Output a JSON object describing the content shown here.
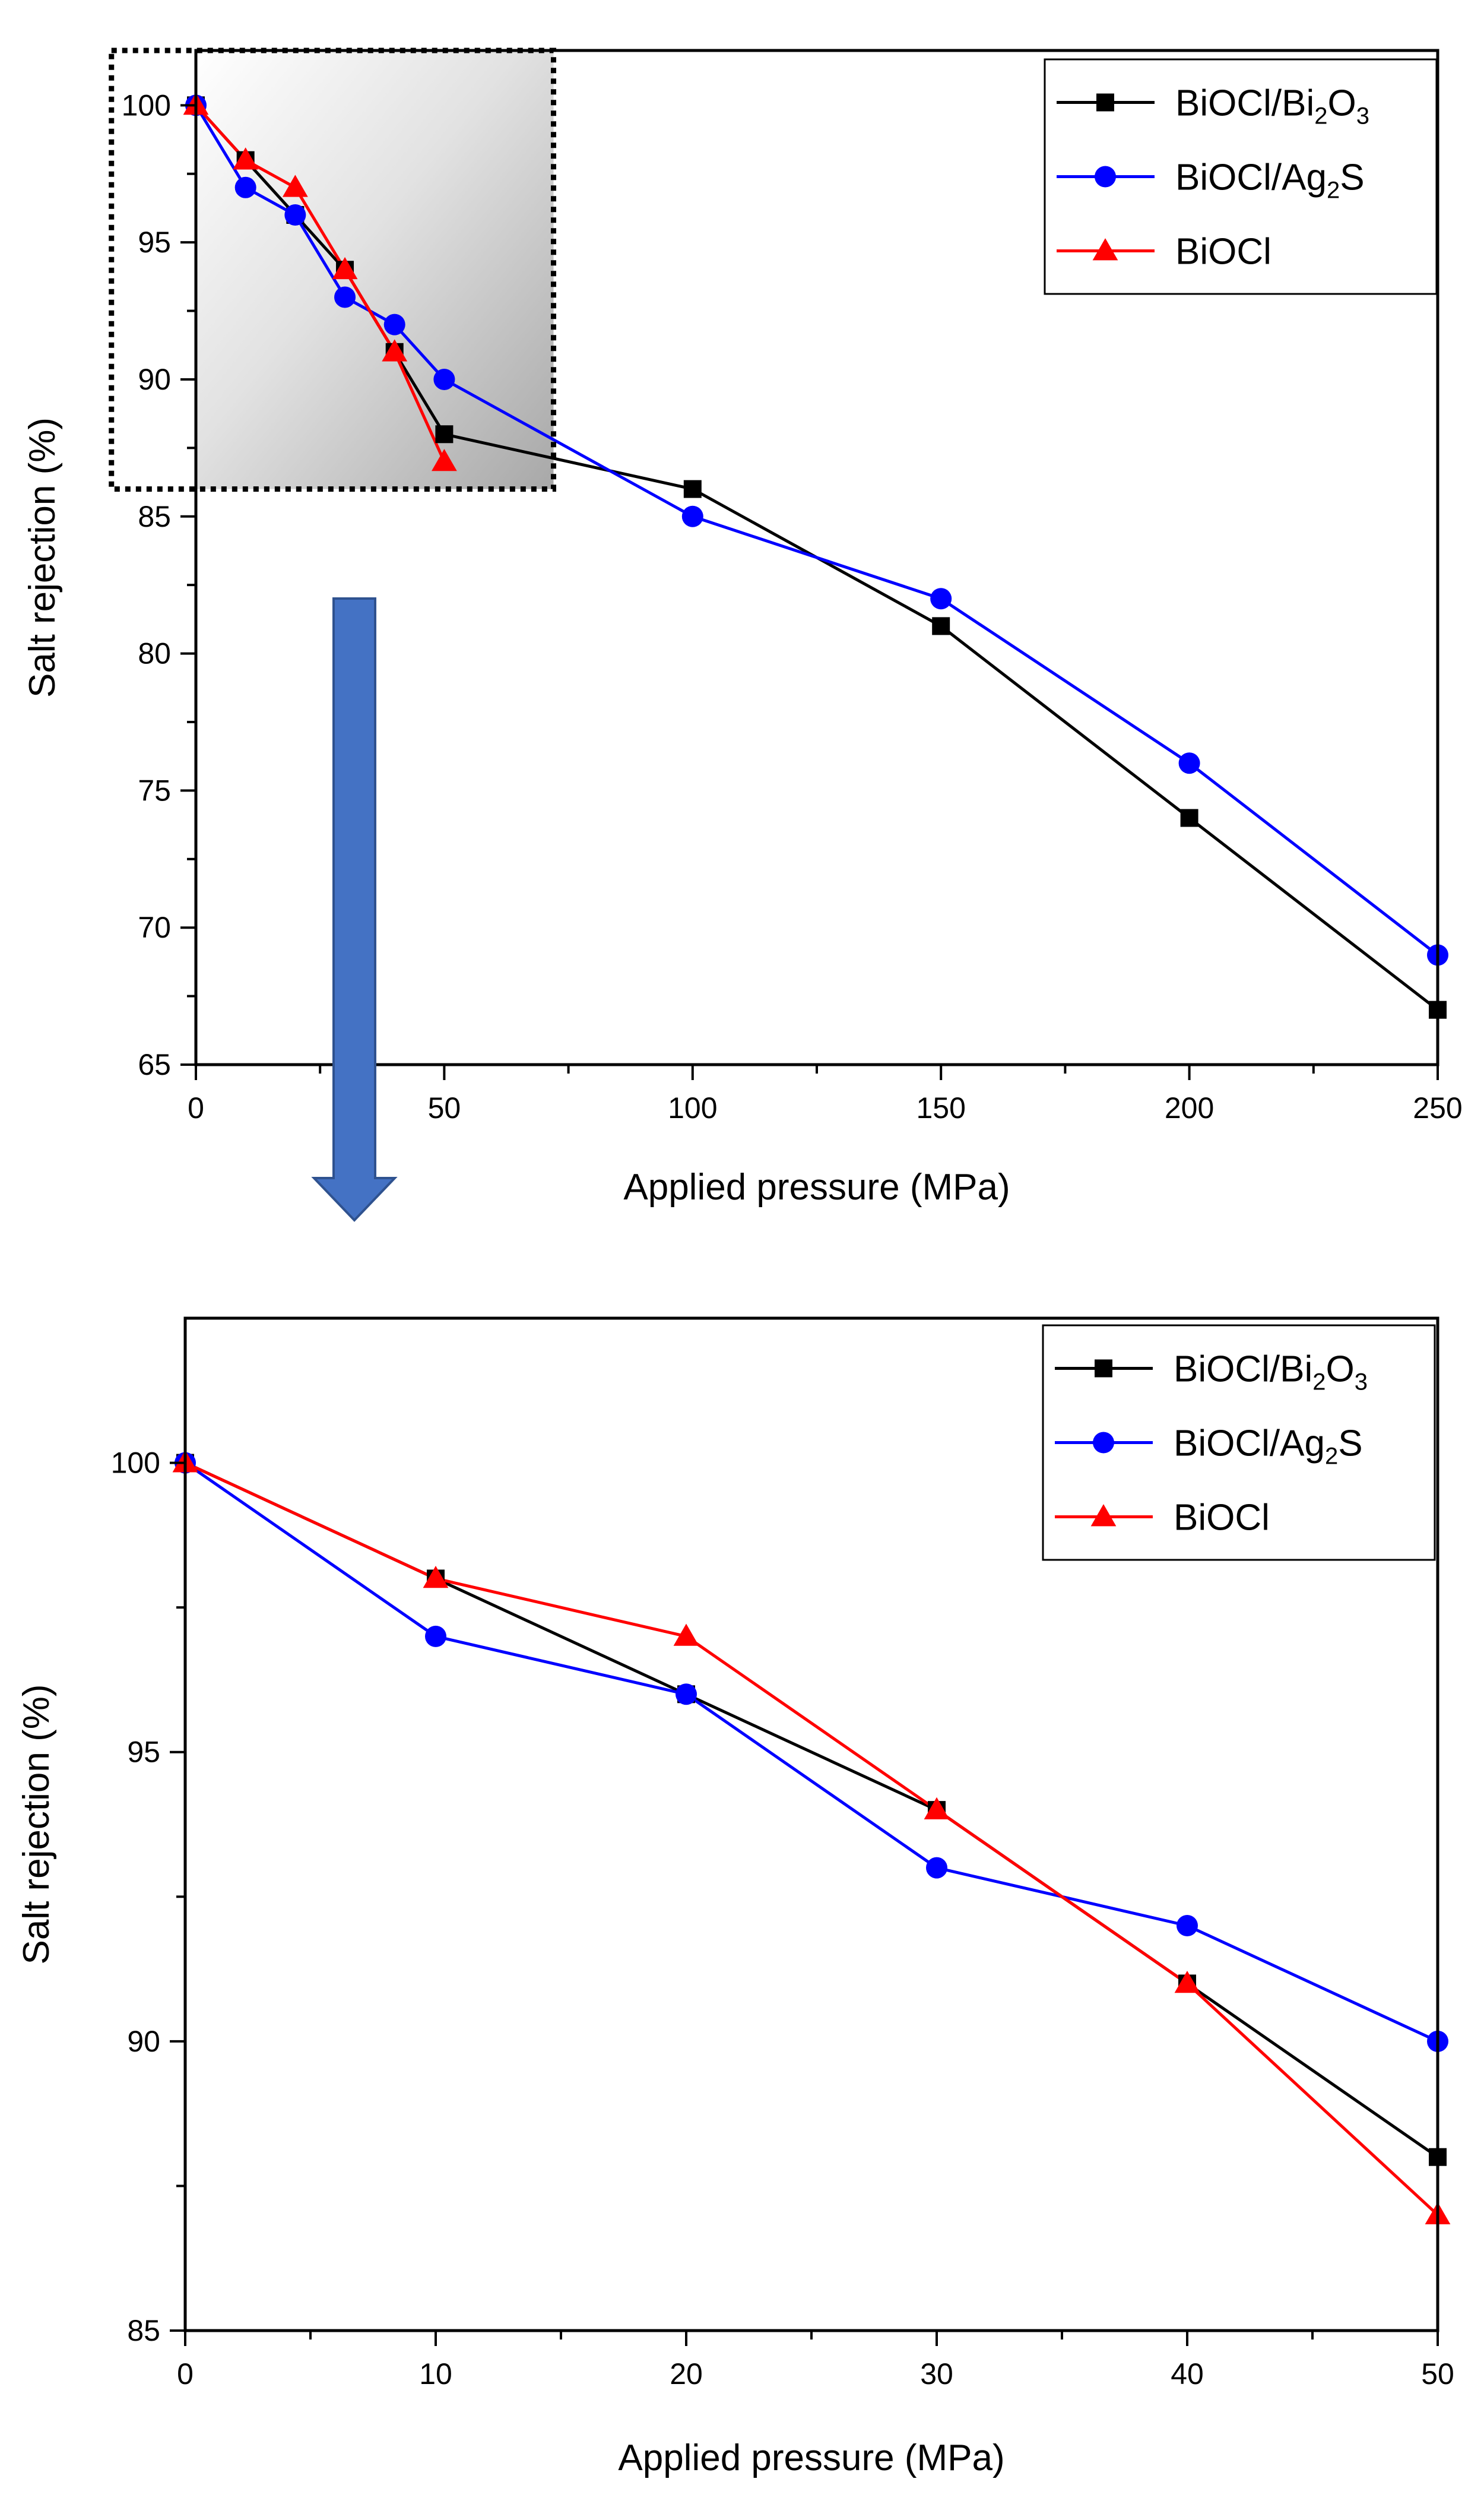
{
  "chart_data": [
    {
      "type": "line",
      "xlabel": "Applied pressure (MPa)",
      "ylabel": "Salt rejection (%)",
      "xlim": [
        0,
        250
      ],
      "ylim": [
        65,
        102
      ],
      "xticks": [
        0,
        50,
        100,
        150,
        200,
        250
      ],
      "yticks": [
        65,
        70,
        75,
        80,
        85,
        90,
        95,
        100
      ],
      "legend_position": "top-right",
      "series": [
        {
          "name": "BiOCl/Bi2O3",
          "label_base": "BiOCl/Bi",
          "label_sub1": "2",
          "label_mid": "O",
          "label_sub2": "3",
          "color": "#000000",
          "marker": "square",
          "x": [
            0,
            10,
            20,
            30,
            40,
            50,
            100,
            150,
            200,
            250
          ],
          "y": [
            100,
            98,
            96,
            94,
            91,
            88,
            86,
            81,
            74,
            67
          ]
        },
        {
          "name": "BiOCl/Ag2S",
          "label_base": "BiOCl/Ag",
          "label_sub1": "2",
          "label_mid": "S",
          "label_sub2": "",
          "color": "#0000ff",
          "marker": "circle",
          "x": [
            0,
            10,
            20,
            30,
            40,
            50,
            100,
            150,
            200,
            250
          ],
          "y": [
            100,
            97,
            96,
            93,
            92,
            90,
            85,
            82,
            76,
            69
          ]
        },
        {
          "name": "BiOCl",
          "label_base": "BiOCl",
          "label_sub1": "",
          "label_mid": "",
          "label_sub2": "",
          "color": "#ff0000",
          "marker": "triangle",
          "x": [
            0,
            10,
            20,
            30,
            40,
            50
          ],
          "y": [
            100,
            98,
            97,
            94,
            91,
            87
          ]
        }
      ],
      "highlight_region": {
        "x_range": [
          -17,
          72
        ],
        "y_range": [
          86,
          102
        ]
      }
    },
    {
      "type": "line",
      "xlabel": "Applied pressure (MPa)",
      "ylabel": "Salt rejection (%)",
      "xlim": [
        0,
        50
      ],
      "ylim": [
        85,
        102.5
      ],
      "xticks": [
        0,
        10,
        20,
        30,
        40,
        50
      ],
      "yticks": [
        85,
        90,
        95,
        100
      ],
      "legend_position": "top-right",
      "series": [
        {
          "name": "BiOCl/Bi2O3",
          "label_base": "BiOCl/Bi",
          "label_sub1": "2",
          "label_mid": "O",
          "label_sub2": "3",
          "color": "#000000",
          "marker": "square",
          "x": [
            0,
            10,
            20,
            30,
            40,
            50
          ],
          "y": [
            100,
            98,
            96,
            94,
            91,
            88
          ]
        },
        {
          "name": "BiOCl/Ag2S",
          "label_base": "BiOCl/Ag",
          "label_sub1": "2",
          "label_mid": "S",
          "label_sub2": "",
          "color": "#0000ff",
          "marker": "circle",
          "x": [
            0,
            10,
            20,
            30,
            40,
            50
          ],
          "y": [
            100,
            97,
            96,
            93,
            92,
            90
          ]
        },
        {
          "name": "BiOCl",
          "label_base": "BiOCl",
          "label_sub1": "",
          "label_mid": "",
          "label_sub2": "",
          "color": "#ff0000",
          "marker": "triangle",
          "x": [
            0,
            10,
            20,
            30,
            40,
            50
          ],
          "y": [
            100,
            98,
            97,
            94,
            91,
            87
          ]
        }
      ]
    }
  ],
  "colors": {
    "arrow": "#4472c4",
    "arrow_edge": "#2f528f",
    "shade": "#a8a8a8"
  }
}
